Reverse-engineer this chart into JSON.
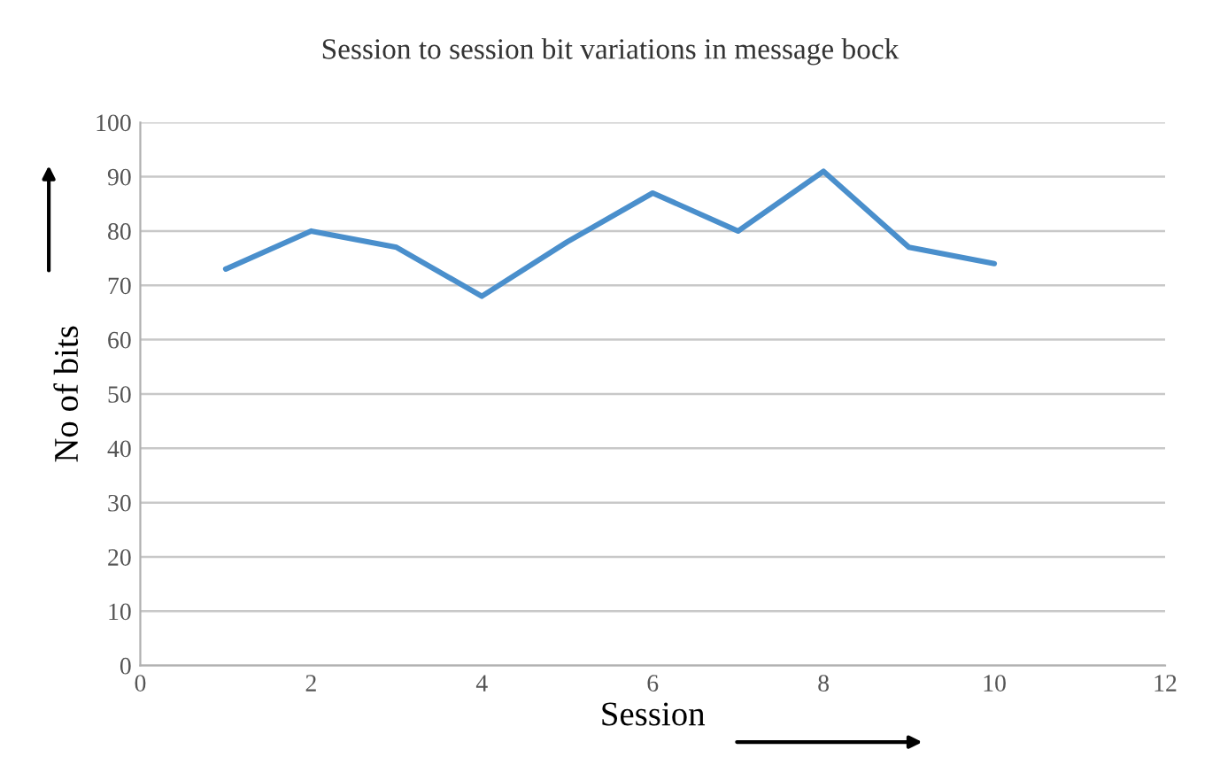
{
  "chart_data": {
    "type": "line",
    "title": "Session to session bit variations in message bock",
    "xlabel": "Session",
    "ylabel": "No of bits",
    "x": [
      1,
      2,
      3,
      4,
      5,
      6,
      7,
      8,
      9,
      10
    ],
    "series": [
      {
        "color": "#4a8fcc",
        "values": [
          73,
          80,
          77,
          68,
          78,
          87,
          80,
          91,
          77,
          74
        ]
      }
    ],
    "xlim": [
      0,
      12
    ],
    "xticks": [
      0,
      2,
      4,
      6,
      8,
      10,
      12
    ],
    "ylim": [
      0,
      100
    ],
    "yticks": [
      0,
      10,
      20,
      30,
      40,
      50,
      60,
      70,
      80,
      90,
      100
    ],
    "grid": "y",
    "legend": false,
    "marker": "none",
    "line_style": "solid"
  }
}
